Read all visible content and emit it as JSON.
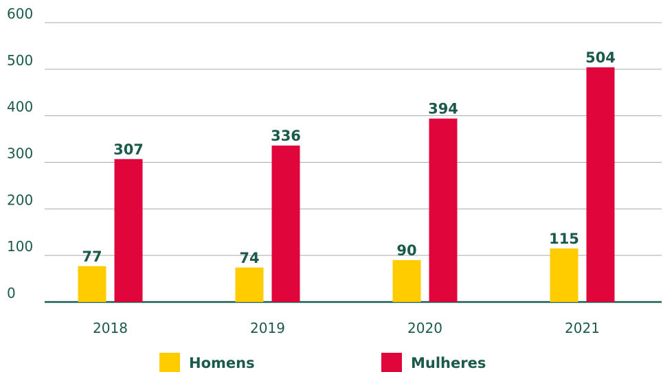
{
  "chart_data": {
    "type": "bar",
    "categories": [
      "2018",
      "2019",
      "2020",
      "2021"
    ],
    "series": [
      {
        "name": "Homens",
        "color": "#ffcc00",
        "values": [
          77,
          74,
          90,
          115
        ]
      },
      {
        "name": "Mulheres",
        "color": "#e0063b",
        "values": [
          307,
          336,
          394,
          504
        ]
      }
    ],
    "ylim": [
      0,
      600
    ],
    "yticks": [
      0,
      100,
      200,
      300,
      400,
      500,
      600
    ],
    "grid": true,
    "legend": "bottom"
  }
}
